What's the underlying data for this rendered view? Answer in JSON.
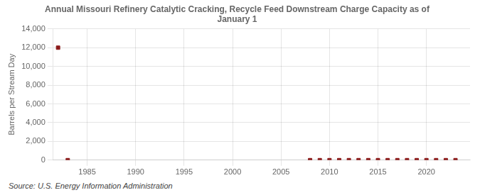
{
  "chart_data": {
    "type": "scatter",
    "title": "Annual Missouri Refinery Catalytic Cracking, Recycle Feed Downstream Charge Capacity as of\nJanuary 1",
    "ylabel": "Barrels per Stream Day",
    "annotations": [
      "Source: U.S. Energy Information Administration"
    ],
    "x": [
      1982,
      1983,
      2008,
      2009,
      2010,
      2011,
      2012,
      2013,
      2014,
      2015,
      2016,
      2017,
      2018,
      2019,
      2020,
      2021,
      2022,
      2023
    ],
    "values": [
      12000,
      0,
      0,
      0,
      0,
      0,
      0,
      0,
      0,
      0,
      0,
      0,
      0,
      0,
      0,
      0,
      0,
      0
    ],
    "color": "#8b1a1a",
    "marker": "square",
    "xlim": [
      1981.5,
      2024.5
    ],
    "xticks": [
      1985,
      1990,
      1995,
      2000,
      2005,
      2010,
      2015,
      2020
    ],
    "ylim": [
      0,
      14000
    ],
    "yticks": [
      0,
      {
        "value": 2000,
        "label": "2,000"
      },
      {
        "value": 4000,
        "label": "4,000"
      },
      {
        "value": 6000,
        "label": "6,000"
      },
      {
        "value": 8000,
        "label": "8,000"
      },
      {
        "value": 10000,
        "label": "10,000"
      },
      {
        "value": 12000,
        "label": "12,000"
      },
      {
        "value": 14000,
        "label": "14,000"
      }
    ],
    "grid": true
  }
}
